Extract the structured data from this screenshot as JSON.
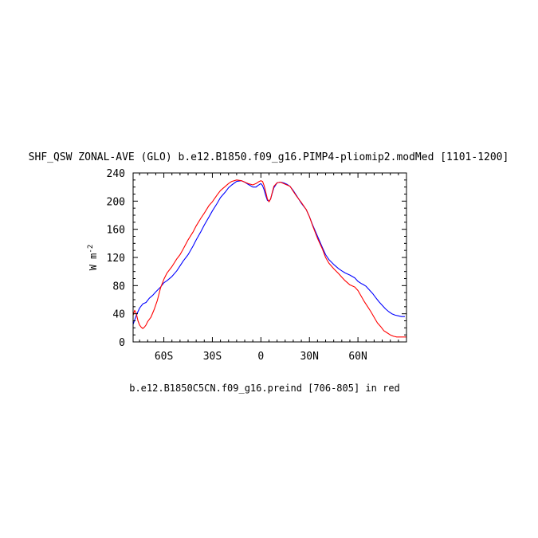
{
  "chart_data": {
    "type": "line",
    "title": "SHF_QSW ZONAL-AVE (GLO) b.e12.B1850.f09_g16.PIMP4-pliomip2.modMed [1101-1200]",
    "xlabel": "",
    "ylabel": "W m",
    "ylabel_exponent": "-2",
    "footer": "b.e12.B1850C5CN.f09_g16.preind [706-805] in red",
    "xlim": [
      -79,
      90
    ],
    "ylim": [
      0,
      240
    ],
    "x_ticks": [
      -60,
      -30,
      0,
      30,
      60
    ],
    "x_tick_labels": [
      "60S",
      "30S",
      "0",
      "30N",
      "60N"
    ],
    "y_ticks": [
      0,
      40,
      80,
      120,
      160,
      200,
      240
    ],
    "y_tick_labels": [
      "0",
      "40",
      "80",
      "120",
      "160",
      "200",
      "240"
    ],
    "grid": false,
    "legend": "none",
    "series": [
      {
        "color": "#0000ff",
        "x": [
          -79,
          -77,
          -75,
          -73,
          -71,
          -69,
          -67,
          -65,
          -62,
          -60,
          -58,
          -55,
          -52,
          -50,
          -48,
          -45,
          -42,
          -40,
          -37,
          -35,
          -32,
          -30,
          -27,
          -25,
          -22,
          -20,
          -18,
          -15,
          -12,
          -10,
          -8,
          -5,
          -3,
          -2,
          0,
          1,
          2,
          3,
          4,
          5,
          6,
          7,
          8,
          10,
          12,
          14,
          16,
          18,
          20,
          22,
          25,
          28,
          30,
          32,
          35,
          38,
          40,
          42,
          45,
          48,
          50,
          52,
          55,
          58,
          60,
          62,
          63,
          65,
          67,
          69,
          71,
          73,
          75,
          77,
          79,
          81,
          83,
          85,
          87,
          89
        ],
        "y": [
          25,
          38,
          48,
          54,
          56,
          62,
          66,
          71,
          78,
          84,
          87,
          93,
          101,
          108,
          115,
          124,
          136,
          145,
          157,
          166,
          178,
          186,
          197,
          205,
          213,
          219,
          223,
          228,
          229,
          227,
          224,
          220,
          220,
          222,
          225,
          222,
          216,
          208,
          201,
          200,
          203,
          211,
          219,
          226,
          227,
          226,
          224,
          221,
          215,
          208,
          197,
          188,
          178,
          166,
          150,
          134,
          124,
          117,
          110,
          104,
          101,
          98,
          95,
          91,
          86,
          83,
          82,
          79,
          74,
          69,
          63,
          57,
          52,
          47,
          43,
          40,
          38,
          37,
          36,
          36
        ]
      },
      {
        "color": "#ff0000",
        "x": [
          -79,
          -78,
          -77,
          -76,
          -75,
          -74,
          -73,
          -72,
          -71,
          -70,
          -68,
          -66,
          -64,
          -62,
          -60,
          -58,
          -55,
          -52,
          -50,
          -48,
          -45,
          -42,
          -40,
          -37,
          -35,
          -32,
          -30,
          -27,
          -25,
          -22,
          -20,
          -18,
          -15,
          -12,
          -10,
          -8,
          -5,
          -3,
          -1,
          0,
          1,
          2,
          3,
          4,
          5,
          6,
          7,
          8,
          10,
          12,
          14,
          16,
          18,
          20,
          22,
          25,
          28,
          30,
          32,
          35,
          38,
          40,
          42,
          45,
          48,
          50,
          52,
          55,
          58,
          60,
          62,
          64,
          66,
          68,
          70,
          72,
          74,
          76,
          78,
          80,
          82,
          84,
          86,
          88,
          90
        ],
        "y": [
          38,
          45,
          40,
          30,
          24,
          21,
          19,
          21,
          24,
          29,
          35,
          46,
          59,
          77,
          89,
          98,
          107,
          118,
          124,
          132,
          145,
          156,
          165,
          176,
          183,
          194,
          199,
          209,
          215,
          221,
          225,
          228,
          230,
          229,
          227,
          225,
          223,
          225,
          228,
          229,
          228,
          222,
          213,
          203,
          199,
          203,
          212,
          221,
          226,
          227,
          225,
          223,
          221,
          214,
          207,
          198,
          188,
          178,
          165,
          147,
          132,
          120,
          112,
          104,
          97,
          92,
          87,
          81,
          78,
          73,
          65,
          57,
          50,
          43,
          35,
          27,
          22,
          16,
          13,
          10,
          8,
          7,
          7,
          7,
          7
        ]
      }
    ]
  }
}
